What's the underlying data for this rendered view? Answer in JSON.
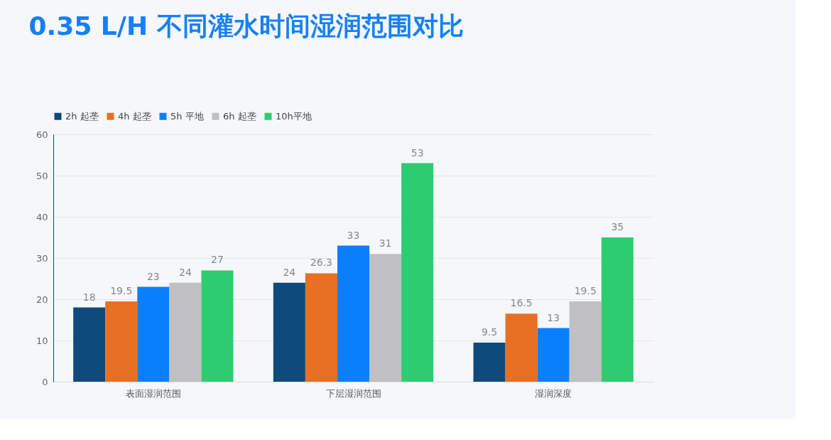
{
  "chart_data": {
    "type": "bar",
    "title": "0.35 L/H 不同灌水时间湿润范围对比",
    "categories": [
      "表面湿润范围",
      "下层湿润范围",
      "湿润深度"
    ],
    "series": [
      {
        "name": "2h 起垄",
        "color": "#0f4a7c",
        "values": [
          18,
          24,
          9.5
        ]
      },
      {
        "name": "4h 起垄",
        "color": "#e87022",
        "values": [
          19.5,
          26.3,
          16.5
        ]
      },
      {
        "name": "5h 平地",
        "color": "#0a7ffc",
        "values": [
          23,
          33,
          13
        ]
      },
      {
        "name": "6h 起垄",
        "color": "#c0c0c2",
        "values": [
          24,
          31,
          19.5
        ]
      },
      {
        "name": "10h平地",
        "color": "#2ecc71",
        "values": [
          27,
          53,
          35
        ]
      }
    ],
    "ylim": [
      0,
      60
    ],
    "yticks": [
      0,
      10,
      20,
      30,
      40,
      50,
      60
    ],
    "grid": "y",
    "legend": "top",
    "data_labels": true
  }
}
